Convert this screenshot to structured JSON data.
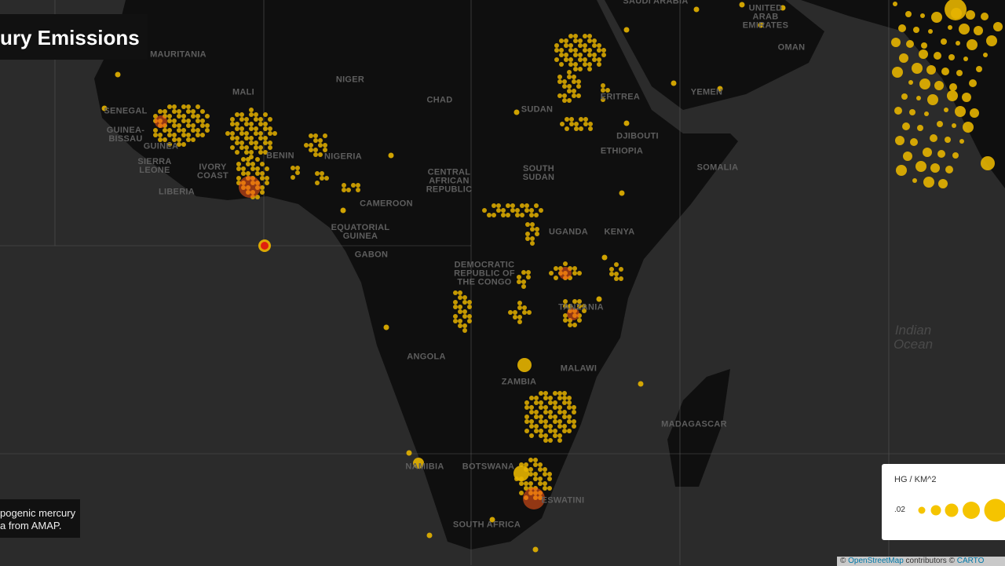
{
  "header": {
    "title": "ury Emissions"
  },
  "map": {
    "labels": [
      "SAUDI ARABIA",
      "UNITED ARAB EMIRATES",
      "OMAN",
      "YEMEN",
      "MAURITANIA",
      "MALI",
      "NIGER",
      "CHAD",
      "SUDAN",
      "ERITREA",
      "DJIBOUTI",
      "ETHIOPIA",
      "SOMALIA",
      "SENEGAL",
      "GUINEA-BISSAU",
      "GUINEA",
      "SIERRA LEONE",
      "IVORY COAST",
      "LIBERIA",
      "BENIN",
      "NIGERIA",
      "CENTRAL AFRICAN REPUBLIC",
      "SOUTH SUDAN",
      "CAMEROON",
      "EQUATORIAL GUINEA",
      "GABON",
      "UGANDA",
      "KENYA",
      "DEMOCRATIC REPUBLIC OF THE CONGO",
      "TANZANIA",
      "ANGOLA",
      "MALAWI",
      "ZAMBIA",
      "MADAGASCAR",
      "NAMIBIA",
      "BOTSWANA",
      "ESWATINI",
      "SOUTH AFRICA"
    ],
    "ocean_label": "Indian Ocean"
  },
  "description": {
    "lines": [
      "pogenic mercury",
      "a from AMAP."
    ]
  },
  "legend": {
    "title": "HG / KM^2",
    "min_label": ".02"
  },
  "attribution": {
    "prefix": "©",
    "osm": "OpenStreetMap",
    "middle": "contributors ©",
    "carto": "CARTO"
  }
}
